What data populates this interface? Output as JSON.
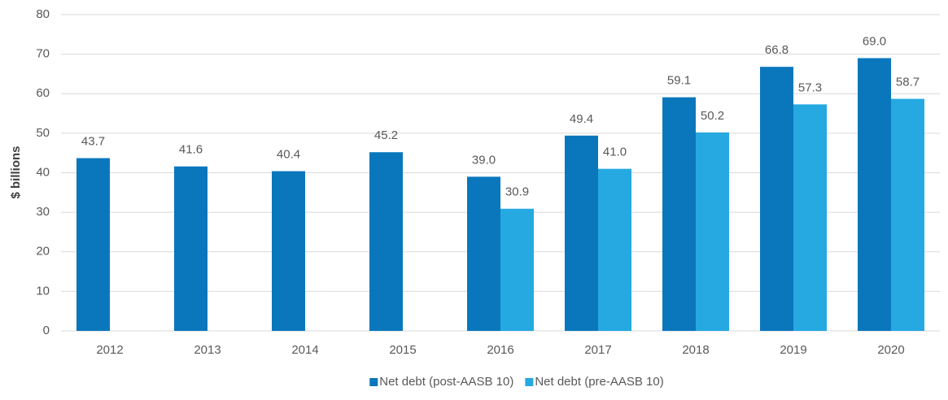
{
  "chart_data": {
    "type": "bar",
    "y_label": "$ billions",
    "categories": [
      "2012",
      "2013",
      "2014",
      "2015",
      "2016",
      "2017",
      "2018",
      "2019",
      "2020"
    ],
    "series": [
      {
        "name": "Net debt (post-AASB 10)",
        "color": "#0a77bd",
        "values": [
          43.7,
          41.6,
          40.4,
          45.2,
          39.0,
          49.4,
          59.1,
          66.8,
          69.0
        ],
        "value_labels": [
          "43.7",
          "41.6",
          "40.4",
          "45.2",
          "39.0",
          "49.4",
          "59.1",
          "66.8",
          "69.0"
        ]
      },
      {
        "name": "Net debt (pre-AASB 10)",
        "color": "#25a9e0",
        "values": [
          null,
          null,
          null,
          null,
          30.9,
          41.0,
          50.2,
          57.3,
          58.7
        ],
        "value_labels": [
          null,
          null,
          null,
          null,
          "30.9",
          "41.0",
          "50.2",
          "57.3",
          "58.7"
        ]
      }
    ],
    "ylim": [
      0,
      80
    ],
    "yticks": [
      0,
      10,
      20,
      30,
      40,
      50,
      60,
      70,
      80
    ],
    "grid": true,
    "legend": "bottom"
  }
}
